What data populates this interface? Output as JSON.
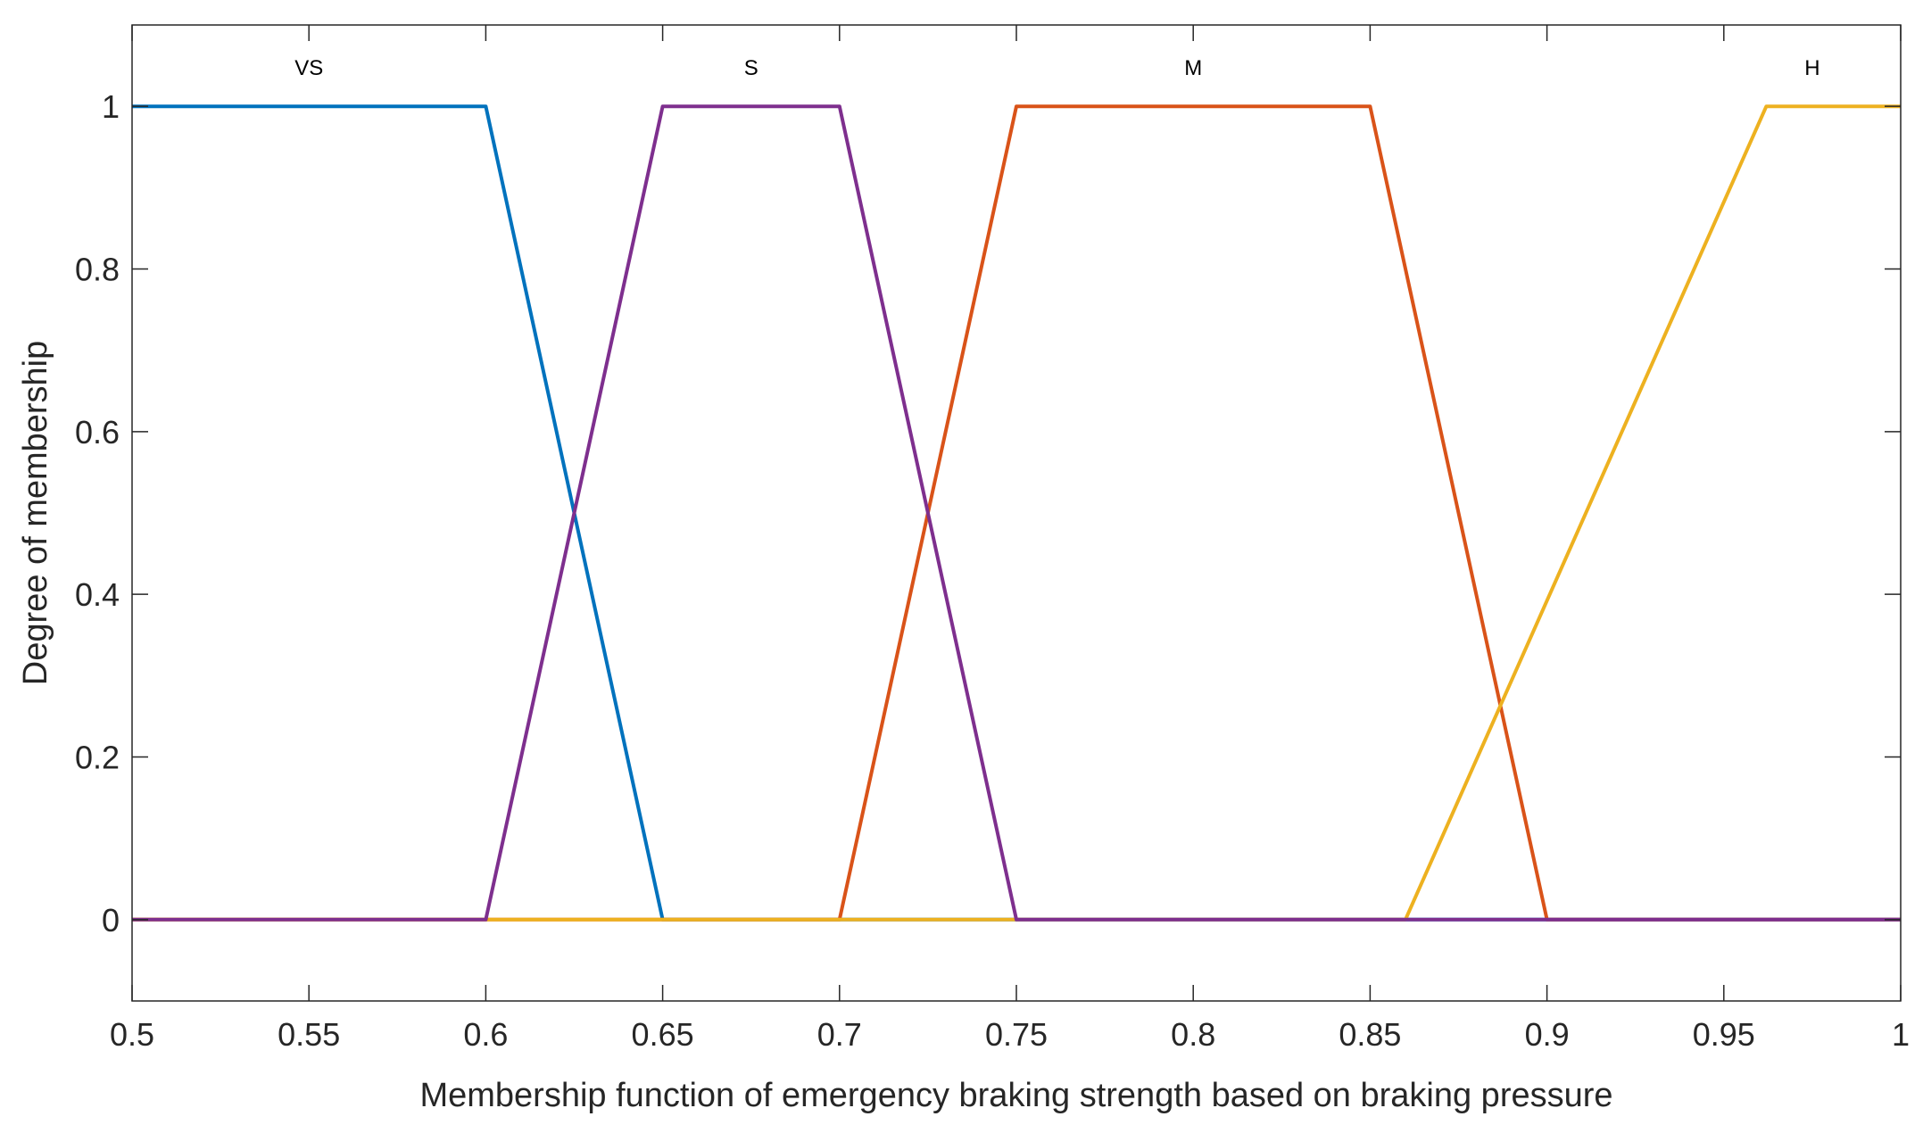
{
  "chart_data": {
    "type": "line",
    "title": "",
    "xlabel": "Membership function of emergency braking strength based on braking pressure",
    "ylabel": "Degree of membership",
    "xlim": [
      0.5,
      1
    ],
    "ylim": [
      -0.1,
      1.1
    ],
    "xticks": [
      0.5,
      0.55,
      0.6,
      0.65,
      0.7,
      0.75,
      0.8,
      0.85,
      0.9,
      0.95,
      1
    ],
    "xtick_labels": [
      "0.5",
      "0.55",
      "0.6",
      "0.65",
      "0.7",
      "0.75",
      "0.8",
      "0.85",
      "0.9",
      "0.95",
      "1"
    ],
    "yticks": [
      0,
      0.2,
      0.4,
      0.6,
      0.8,
      1
    ],
    "ytick_labels": [
      "0",
      "0.2",
      "0.4",
      "0.6",
      "0.8",
      "1"
    ],
    "grid": false,
    "series": [
      {
        "name": "VS",
        "color": "#0072BD",
        "x": [
          0.5,
          0.6,
          0.65,
          1.0
        ],
        "y": [
          1,
          1,
          0,
          0
        ],
        "label_x": 0.55
      },
      {
        "name": "M",
        "color": "#D95319",
        "x": [
          0.5,
          0.7,
          0.75,
          0.85,
          0.9,
          1.0
        ],
        "y": [
          0,
          0,
          1,
          1,
          0,
          0
        ],
        "label_x": 0.8
      },
      {
        "name": "H",
        "color": "#EDB120",
        "x": [
          0.5,
          0.86,
          0.962,
          1.0
        ],
        "y": [
          0,
          0,
          1,
          1
        ],
        "label_x": 0.975
      },
      {
        "name": "S",
        "color": "#7E2F8E",
        "x": [
          0.5,
          0.6,
          0.65,
          0.7,
          0.75,
          1.0
        ],
        "y": [
          0,
          0,
          1,
          1,
          0,
          0
        ],
        "label_x": 0.675
      }
    ]
  }
}
